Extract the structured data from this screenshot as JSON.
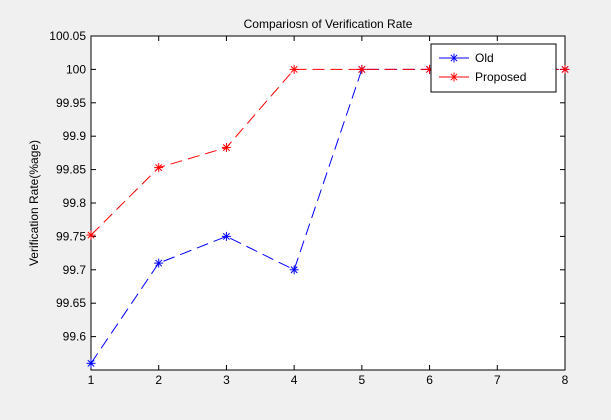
{
  "chart_data": {
    "type": "line",
    "title": "Compariosn of Verification Rate",
    "xlabel": "",
    "ylabel": "Verification Rate(%age)",
    "x": [
      1,
      2,
      3,
      4,
      5,
      6,
      7,
      8
    ],
    "xlim": [
      1,
      8
    ],
    "ylim": [
      99.55,
      100.05
    ],
    "xticks": [
      "1",
      "2",
      "3",
      "4",
      "5",
      "6",
      "7",
      "8"
    ],
    "yticks": [
      "99.6",
      "99.65",
      "99.7",
      "99.75",
      "99.8",
      "99.85",
      "99.9",
      "99.95",
      "100",
      "100.05"
    ],
    "grid": false,
    "legend_position": "top-right",
    "series": [
      {
        "name": "Old",
        "color": "#0000ff",
        "marker": "asterisk",
        "line_style": "dashed",
        "values": [
          99.56,
          99.71,
          99.75,
          99.7,
          100,
          100,
          100,
          100
        ]
      },
      {
        "name": "Proposed",
        "color": "#ff0000",
        "marker": "asterisk",
        "line_style": "dashed",
        "values": [
          99.752,
          99.853,
          99.883,
          100,
          100,
          100,
          100,
          100
        ]
      }
    ]
  }
}
